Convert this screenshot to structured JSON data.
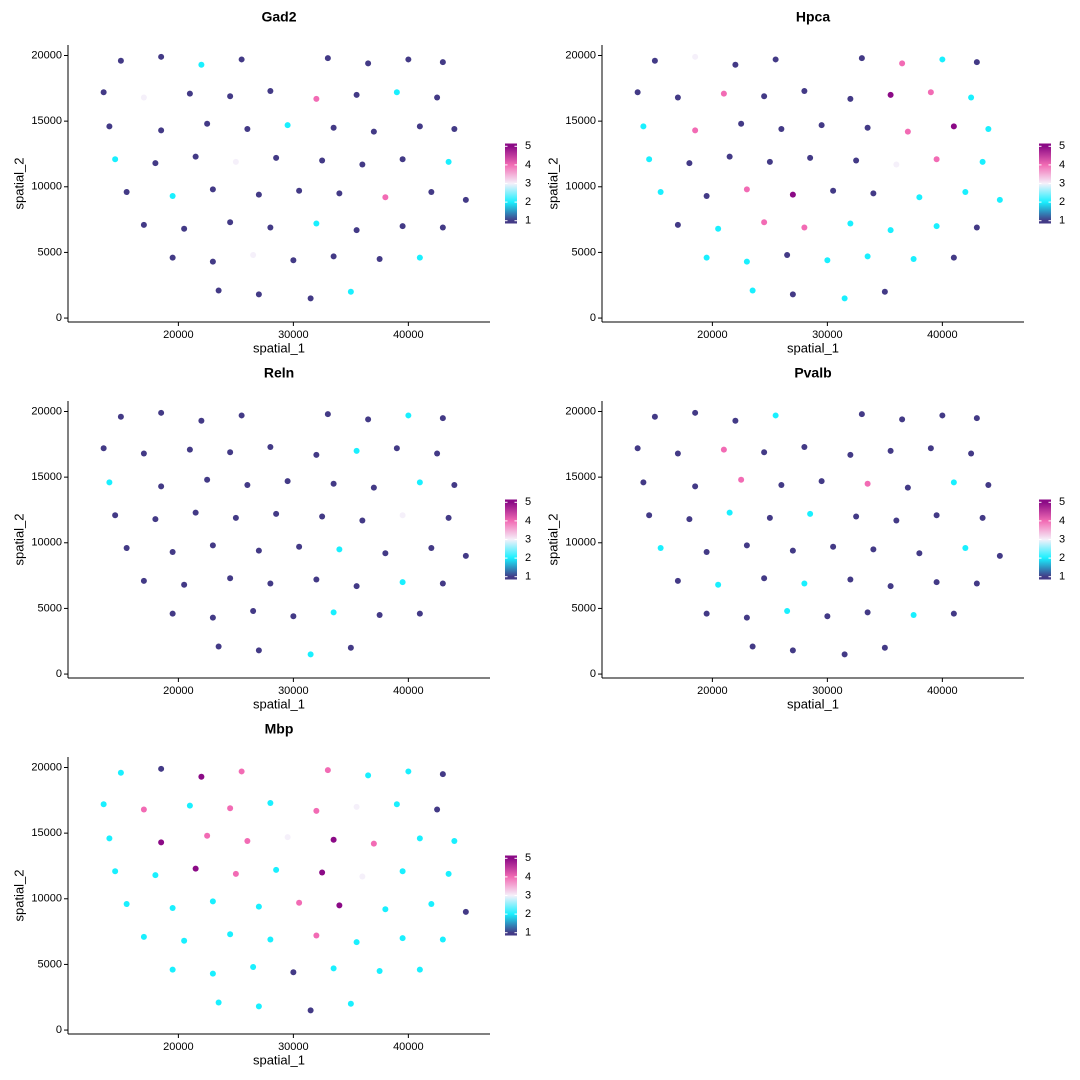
{
  "chart_data": [
    {
      "type": "scatter",
      "title": "Gad2",
      "x_label": "spatial_1",
      "y_label": "spatial_2",
      "x": [
        15000,
        18500,
        22000,
        25500,
        33000,
        36500,
        40000,
        43000,
        13500,
        17000,
        21000,
        24500,
        28000,
        32000,
        35500,
        39000,
        42500,
        14000,
        18500,
        22500,
        26000,
        29500,
        33500,
        37000,
        41000,
        44000,
        14500,
        18000,
        21500,
        25000,
        28500,
        32500,
        36000,
        39500,
        43500,
        15500,
        19500,
        23000,
        27000,
        30500,
        34000,
        38000,
        42000,
        45000,
        17000,
        20500,
        24500,
        28000,
        32000,
        35500,
        39500,
        43000,
        19500,
        23000,
        26500,
        30000,
        33500,
        37500,
        41000,
        23500,
        27000,
        31500,
        35000
      ],
      "y": [
        19600,
        19900,
        19300,
        19700,
        19800,
        19400,
        19700,
        19500,
        17200,
        16800,
        17100,
        16900,
        17300,
        16700,
        17000,
        17200,
        16800,
        14600,
        14300,
        14800,
        14400,
        14700,
        14500,
        14200,
        14600,
        14400,
        12100,
        11800,
        12300,
        11900,
        12200,
        12000,
        11700,
        12100,
        11900,
        9600,
        9300,
        9800,
        9400,
        9700,
        9500,
        9200,
        9600,
        9000,
        7100,
        6800,
        7300,
        6900,
        7200,
        6700,
        7000,
        6900,
        4600,
        4300,
        4800,
        4400,
        4700,
        4500,
        4600,
        2100,
        1800,
        1500,
        2000
      ],
      "values": [
        1,
        1,
        2,
        1,
        1,
        1,
        1,
        1,
        1,
        3,
        1,
        1,
        1,
        4,
        1,
        2,
        1,
        1,
        1,
        1,
        1,
        2,
        1,
        1,
        1,
        1,
        2,
        1,
        1,
        3,
        1,
        1,
        1,
        1,
        2,
        1,
        2,
        1,
        1,
        1,
        1,
        4,
        1,
        1,
        1,
        1,
        1,
        1,
        2,
        1,
        1,
        1,
        1,
        1,
        3,
        1,
        1,
        1,
        2,
        1,
        1,
        1,
        2
      ],
      "xlim": [
        10400,
        47100
      ],
      "ylim": [
        -300,
        20800
      ],
      "xticks": [
        20000,
        30000,
        40000
      ],
      "yticks": [
        0,
        5000,
        10000,
        15000,
        20000
      ],
      "colorbar": {
        "lim": [
          0.85,
          5.15
        ],
        "ticks": [
          1,
          2,
          3,
          4,
          5
        ],
        "colors": [
          "#433a86",
          "#19f0ff",
          "#f5f0fa",
          "#f26bb4",
          "#8b0a86"
        ]
      }
    },
    {
      "type": "scatter",
      "title": "Hpca",
      "x_label": "spatial_1",
      "y_label": "spatial_2",
      "x": [
        15000,
        18500,
        22000,
        25500,
        33000,
        36500,
        40000,
        43000,
        13500,
        17000,
        21000,
        24500,
        28000,
        32000,
        35500,
        39000,
        42500,
        14000,
        18500,
        22500,
        26000,
        29500,
        33500,
        37000,
        41000,
        44000,
        14500,
        18000,
        21500,
        25000,
        28500,
        32500,
        36000,
        39500,
        43500,
        15500,
        19500,
        23000,
        27000,
        30500,
        34000,
        38000,
        42000,
        45000,
        17000,
        20500,
        24500,
        28000,
        32000,
        35500,
        39500,
        43000,
        19500,
        23000,
        26500,
        30000,
        33500,
        37500,
        41000,
        23500,
        27000,
        31500,
        35000
      ],
      "y": [
        19600,
        19900,
        19300,
        19700,
        19800,
        19400,
        19700,
        19500,
        17200,
        16800,
        17100,
        16900,
        17300,
        16700,
        17000,
        17200,
        16800,
        14600,
        14300,
        14800,
        14400,
        14700,
        14500,
        14200,
        14600,
        14400,
        12100,
        11800,
        12300,
        11900,
        12200,
        12000,
        11700,
        12100,
        11900,
        9600,
        9300,
        9800,
        9400,
        9700,
        9500,
        9200,
        9600,
        9000,
        7100,
        6800,
        7300,
        6900,
        7200,
        6700,
        7000,
        6900,
        4600,
        4300,
        4800,
        4400,
        4700,
        4500,
        4600,
        2100,
        1800,
        1500,
        2000
      ],
      "values": [
        1,
        3,
        1,
        1,
        1,
        4,
        2,
        1,
        1,
        1,
        4,
        1,
        1,
        1,
        5,
        4,
        2,
        2,
        4,
        1,
        1,
        1,
        1,
        4,
        5,
        2,
        2,
        1,
        1,
        1,
        1,
        1,
        3,
        4,
        2,
        2,
        1,
        4,
        5,
        1,
        1,
        2,
        2,
        2,
        1,
        2,
        4,
        4,
        2,
        2,
        2,
        1,
        2,
        2,
        1,
        2,
        2,
        2,
        1,
        2,
        1,
        2,
        1
      ],
      "xlim": [
        10400,
        47100
      ],
      "ylim": [
        -300,
        20800
      ],
      "xticks": [
        20000,
        30000,
        40000
      ],
      "yticks": [
        0,
        5000,
        10000,
        15000,
        20000
      ],
      "colorbar": {
        "lim": [
          0.85,
          5.15
        ],
        "ticks": [
          1,
          2,
          3,
          4,
          5
        ],
        "colors": [
          "#433a86",
          "#19f0ff",
          "#f5f0fa",
          "#f26bb4",
          "#8b0a86"
        ]
      }
    },
    {
      "type": "scatter",
      "title": "Reln",
      "x_label": "spatial_1",
      "y_label": "spatial_2",
      "x": [
        15000,
        18500,
        22000,
        25500,
        33000,
        36500,
        40000,
        43000,
        13500,
        17000,
        21000,
        24500,
        28000,
        32000,
        35500,
        39000,
        42500,
        14000,
        18500,
        22500,
        26000,
        29500,
        33500,
        37000,
        41000,
        44000,
        14500,
        18000,
        21500,
        25000,
        28500,
        32500,
        36000,
        39500,
        43500,
        15500,
        19500,
        23000,
        27000,
        30500,
        34000,
        38000,
        42000,
        45000,
        17000,
        20500,
        24500,
        28000,
        32000,
        35500,
        39500,
        43000,
        19500,
        23000,
        26500,
        30000,
        33500,
        37500,
        41000,
        23500,
        27000,
        31500,
        35000
      ],
      "y": [
        19600,
        19900,
        19300,
        19700,
        19800,
        19400,
        19700,
        19500,
        17200,
        16800,
        17100,
        16900,
        17300,
        16700,
        17000,
        17200,
        16800,
        14600,
        14300,
        14800,
        14400,
        14700,
        14500,
        14200,
        14600,
        14400,
        12100,
        11800,
        12300,
        11900,
        12200,
        12000,
        11700,
        12100,
        11900,
        9600,
        9300,
        9800,
        9400,
        9700,
        9500,
        9200,
        9600,
        9000,
        7100,
        6800,
        7300,
        6900,
        7200,
        6700,
        7000,
        6900,
        4600,
        4300,
        4800,
        4400,
        4700,
        4500,
        4600,
        2100,
        1800,
        1500,
        2000
      ],
      "values": [
        1,
        1,
        1,
        1,
        1,
        1,
        2,
        1,
        1,
        1,
        1,
        1,
        1,
        1,
        2,
        1,
        1,
        2,
        1,
        1,
        1,
        1,
        1,
        1,
        2,
        1,
        1,
        1,
        1,
        1,
        1,
        1,
        1,
        3,
        1,
        1,
        1,
        1,
        1,
        1,
        2,
        1,
        1,
        1,
        1,
        1,
        1,
        1,
        1,
        1,
        2,
        1,
        1,
        1,
        1,
        1,
        2,
        1,
        1,
        1,
        1,
        2,
        1
      ],
      "xlim": [
        10400,
        47100
      ],
      "ylim": [
        -300,
        20800
      ],
      "xticks": [
        20000,
        30000,
        40000
      ],
      "yticks": [
        0,
        5000,
        10000,
        15000,
        20000
      ],
      "colorbar": {
        "lim": [
          0.85,
          5.15
        ],
        "ticks": [
          1,
          2,
          3,
          4,
          5
        ],
        "colors": [
          "#433a86",
          "#19f0ff",
          "#f5f0fa",
          "#f26bb4",
          "#8b0a86"
        ]
      }
    },
    {
      "type": "scatter",
      "title": "Pvalb",
      "x_label": "spatial_1",
      "y_label": "spatial_2",
      "x": [
        15000,
        18500,
        22000,
        25500,
        33000,
        36500,
        40000,
        43000,
        13500,
        17000,
        21000,
        24500,
        28000,
        32000,
        35500,
        39000,
        42500,
        14000,
        18500,
        22500,
        26000,
        29500,
        33500,
        37000,
        41000,
        44000,
        14500,
        18000,
        21500,
        25000,
        28500,
        32500,
        36000,
        39500,
        43500,
        15500,
        19500,
        23000,
        27000,
        30500,
        34000,
        38000,
        42000,
        45000,
        17000,
        20500,
        24500,
        28000,
        32000,
        35500,
        39500,
        43000,
        19500,
        23000,
        26500,
        30000,
        33500,
        37500,
        41000,
        23500,
        27000,
        31500,
        35000
      ],
      "y": [
        19600,
        19900,
        19300,
        19700,
        19800,
        19400,
        19700,
        19500,
        17200,
        16800,
        17100,
        16900,
        17300,
        16700,
        17000,
        17200,
        16800,
        14600,
        14300,
        14800,
        14400,
        14700,
        14500,
        14200,
        14600,
        14400,
        12100,
        11800,
        12300,
        11900,
        12200,
        12000,
        11700,
        12100,
        11900,
        9600,
        9300,
        9800,
        9400,
        9700,
        9500,
        9200,
        9600,
        9000,
        7100,
        6800,
        7300,
        6900,
        7200,
        6700,
        7000,
        6900,
        4600,
        4300,
        4800,
        4400,
        4700,
        4500,
        4600,
        2100,
        1800,
        1500,
        2000
      ],
      "values": [
        1,
        1,
        1,
        2,
        1,
        1,
        1,
        1,
        1,
        1,
        4,
        1,
        1,
        1,
        1,
        1,
        1,
        1,
        1,
        4,
        1,
        1,
        4,
        1,
        2,
        1,
        1,
        1,
        2,
        1,
        2,
        1,
        1,
        1,
        1,
        2,
        1,
        1,
        1,
        1,
        1,
        1,
        2,
        1,
        1,
        2,
        1,
        2,
        1,
        1,
        1,
        1,
        1,
        1,
        2,
        1,
        1,
        2,
        1,
        1,
        1,
        1,
        1
      ],
      "xlim": [
        10400,
        47100
      ],
      "ylim": [
        -300,
        20800
      ],
      "xticks": [
        20000,
        30000,
        40000
      ],
      "yticks": [
        0,
        5000,
        10000,
        15000,
        20000
      ],
      "colorbar": {
        "lim": [
          0.85,
          5.15
        ],
        "ticks": [
          1,
          2,
          3,
          4,
          5
        ],
        "colors": [
          "#433a86",
          "#19f0ff",
          "#f5f0fa",
          "#f26bb4",
          "#8b0a86"
        ]
      }
    },
    {
      "type": "scatter",
      "title": "Mbp",
      "x_label": "spatial_1",
      "y_label": "spatial_2",
      "x": [
        15000,
        18500,
        22000,
        25500,
        33000,
        36500,
        40000,
        43000,
        13500,
        17000,
        21000,
        24500,
        28000,
        32000,
        35500,
        39000,
        42500,
        14000,
        18500,
        22500,
        26000,
        29500,
        33500,
        37000,
        41000,
        44000,
        14500,
        18000,
        21500,
        25000,
        28500,
        32500,
        36000,
        39500,
        43500,
        15500,
        19500,
        23000,
        27000,
        30500,
        34000,
        38000,
        42000,
        45000,
        17000,
        20500,
        24500,
        28000,
        32000,
        35500,
        39500,
        43000,
        19500,
        23000,
        26500,
        30000,
        33500,
        37500,
        41000,
        23500,
        27000,
        31500,
        35000
      ],
      "y": [
        19600,
        19900,
        19300,
        19700,
        19800,
        19400,
        19700,
        19500,
        17200,
        16800,
        17100,
        16900,
        17300,
        16700,
        17000,
        17200,
        16800,
        14600,
        14300,
        14800,
        14400,
        14700,
        14500,
        14200,
        14600,
        14400,
        12100,
        11800,
        12300,
        11900,
        12200,
        12000,
        11700,
        12100,
        11900,
        9600,
        9300,
        9800,
        9400,
        9700,
        9500,
        9200,
        9600,
        9000,
        7100,
        6800,
        7300,
        6900,
        7200,
        6700,
        7000,
        6900,
        4600,
        4300,
        4800,
        4400,
        4700,
        4500,
        4600,
        2100,
        1800,
        1500,
        2000
      ],
      "values": [
        2,
        1,
        5,
        4,
        4,
        2,
        2,
        1,
        2,
        4,
        2,
        4,
        2,
        4,
        3,
        2,
        1,
        2,
        5,
        4,
        4,
        3,
        5,
        4,
        2,
        2,
        2,
        2,
        5,
        4,
        2,
        5,
        3,
        2,
        2,
        2,
        2,
        2,
        2,
        4,
        5,
        2,
        2,
        1,
        2,
        2,
        2,
        2,
        4,
        2,
        2,
        2,
        2,
        2,
        2,
        1,
        2,
        2,
        2,
        2,
        2,
        1,
        2
      ],
      "xlim": [
        10400,
        47100
      ],
      "ylim": [
        -300,
        20800
      ],
      "xticks": [
        20000,
        30000,
        40000
      ],
      "yticks": [
        0,
        5000,
        10000,
        15000,
        20000
      ],
      "colorbar": {
        "lim": [
          0.85,
          5.15
        ],
        "ticks": [
          1,
          2,
          3,
          4,
          5
        ],
        "colors": [
          "#433a86",
          "#19f0ff",
          "#f5f0fa",
          "#f26bb4",
          "#8b0a86"
        ]
      }
    }
  ]
}
